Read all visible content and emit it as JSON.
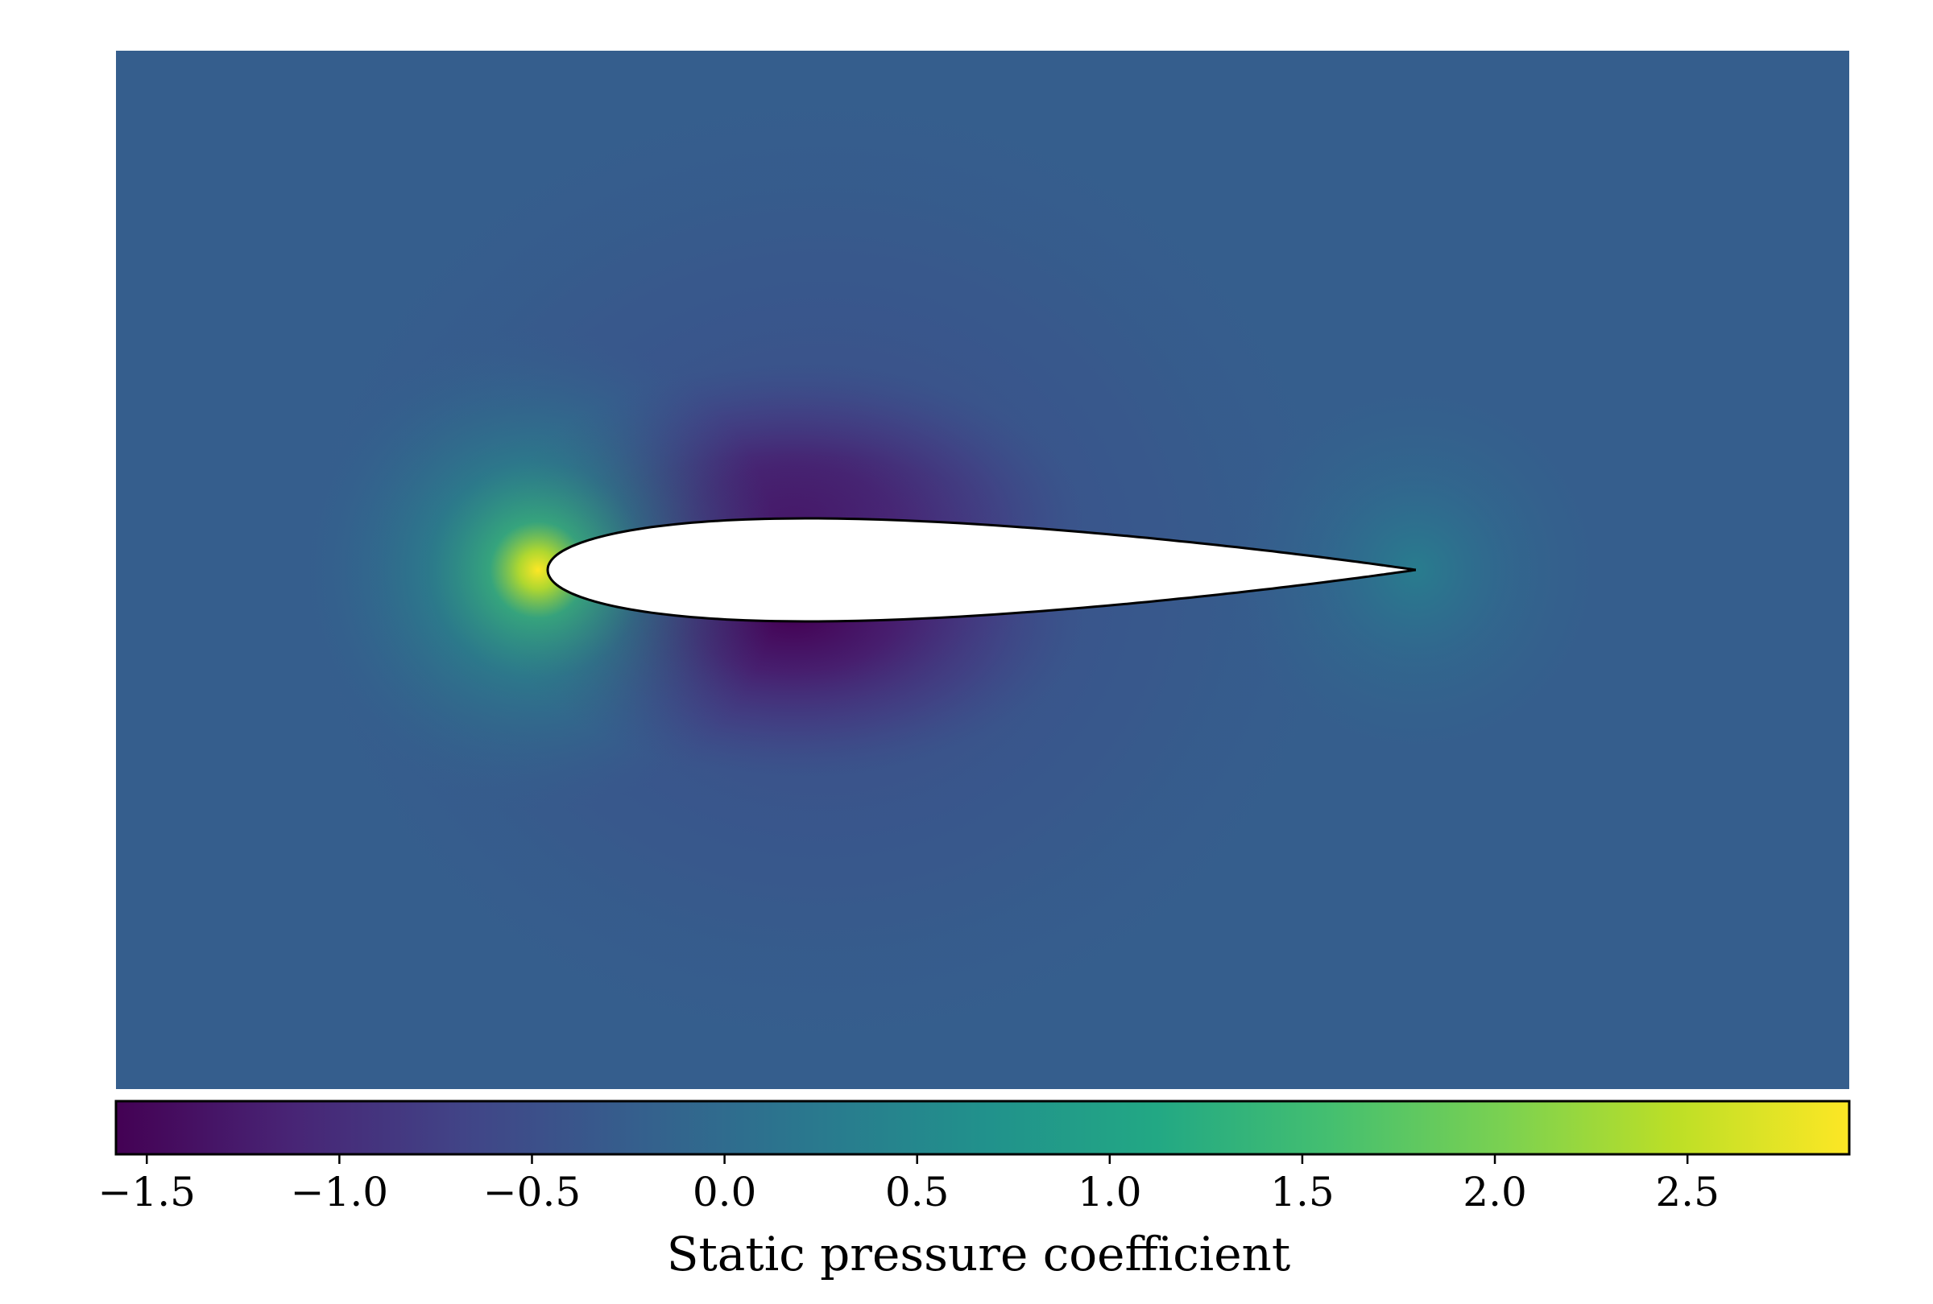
{
  "chart_data": {
    "type": "heatmap",
    "title": "",
    "description_of_field": "static pressure coefficient around symmetric airfoil at zero incidence",
    "colormap": "viridis",
    "colorbar": {
      "label": "Static pressure coefficient",
      "range": [
        -1.58,
        2.92
      ],
      "ticks": [
        -1.5,
        -1.0,
        -0.5,
        0.0,
        0.5,
        1.0,
        1.5,
        2.0,
        2.5
      ],
      "tick_labels": [
        "−1.5",
        "−1.0",
        "−0.5",
        "0.0",
        "0.5",
        "1.0",
        "1.5",
        "2.0",
        "2.5"
      ]
    },
    "field": {
      "freestream_value": 0.0,
      "stagnation_value": 2.9,
      "trailing_edge_value": 0.9,
      "minimum_value": -1.55
    },
    "airfoil": {
      "fill": "#ffffff",
      "outline": "#000000"
    },
    "grid": false,
    "axes_visible": false
  }
}
